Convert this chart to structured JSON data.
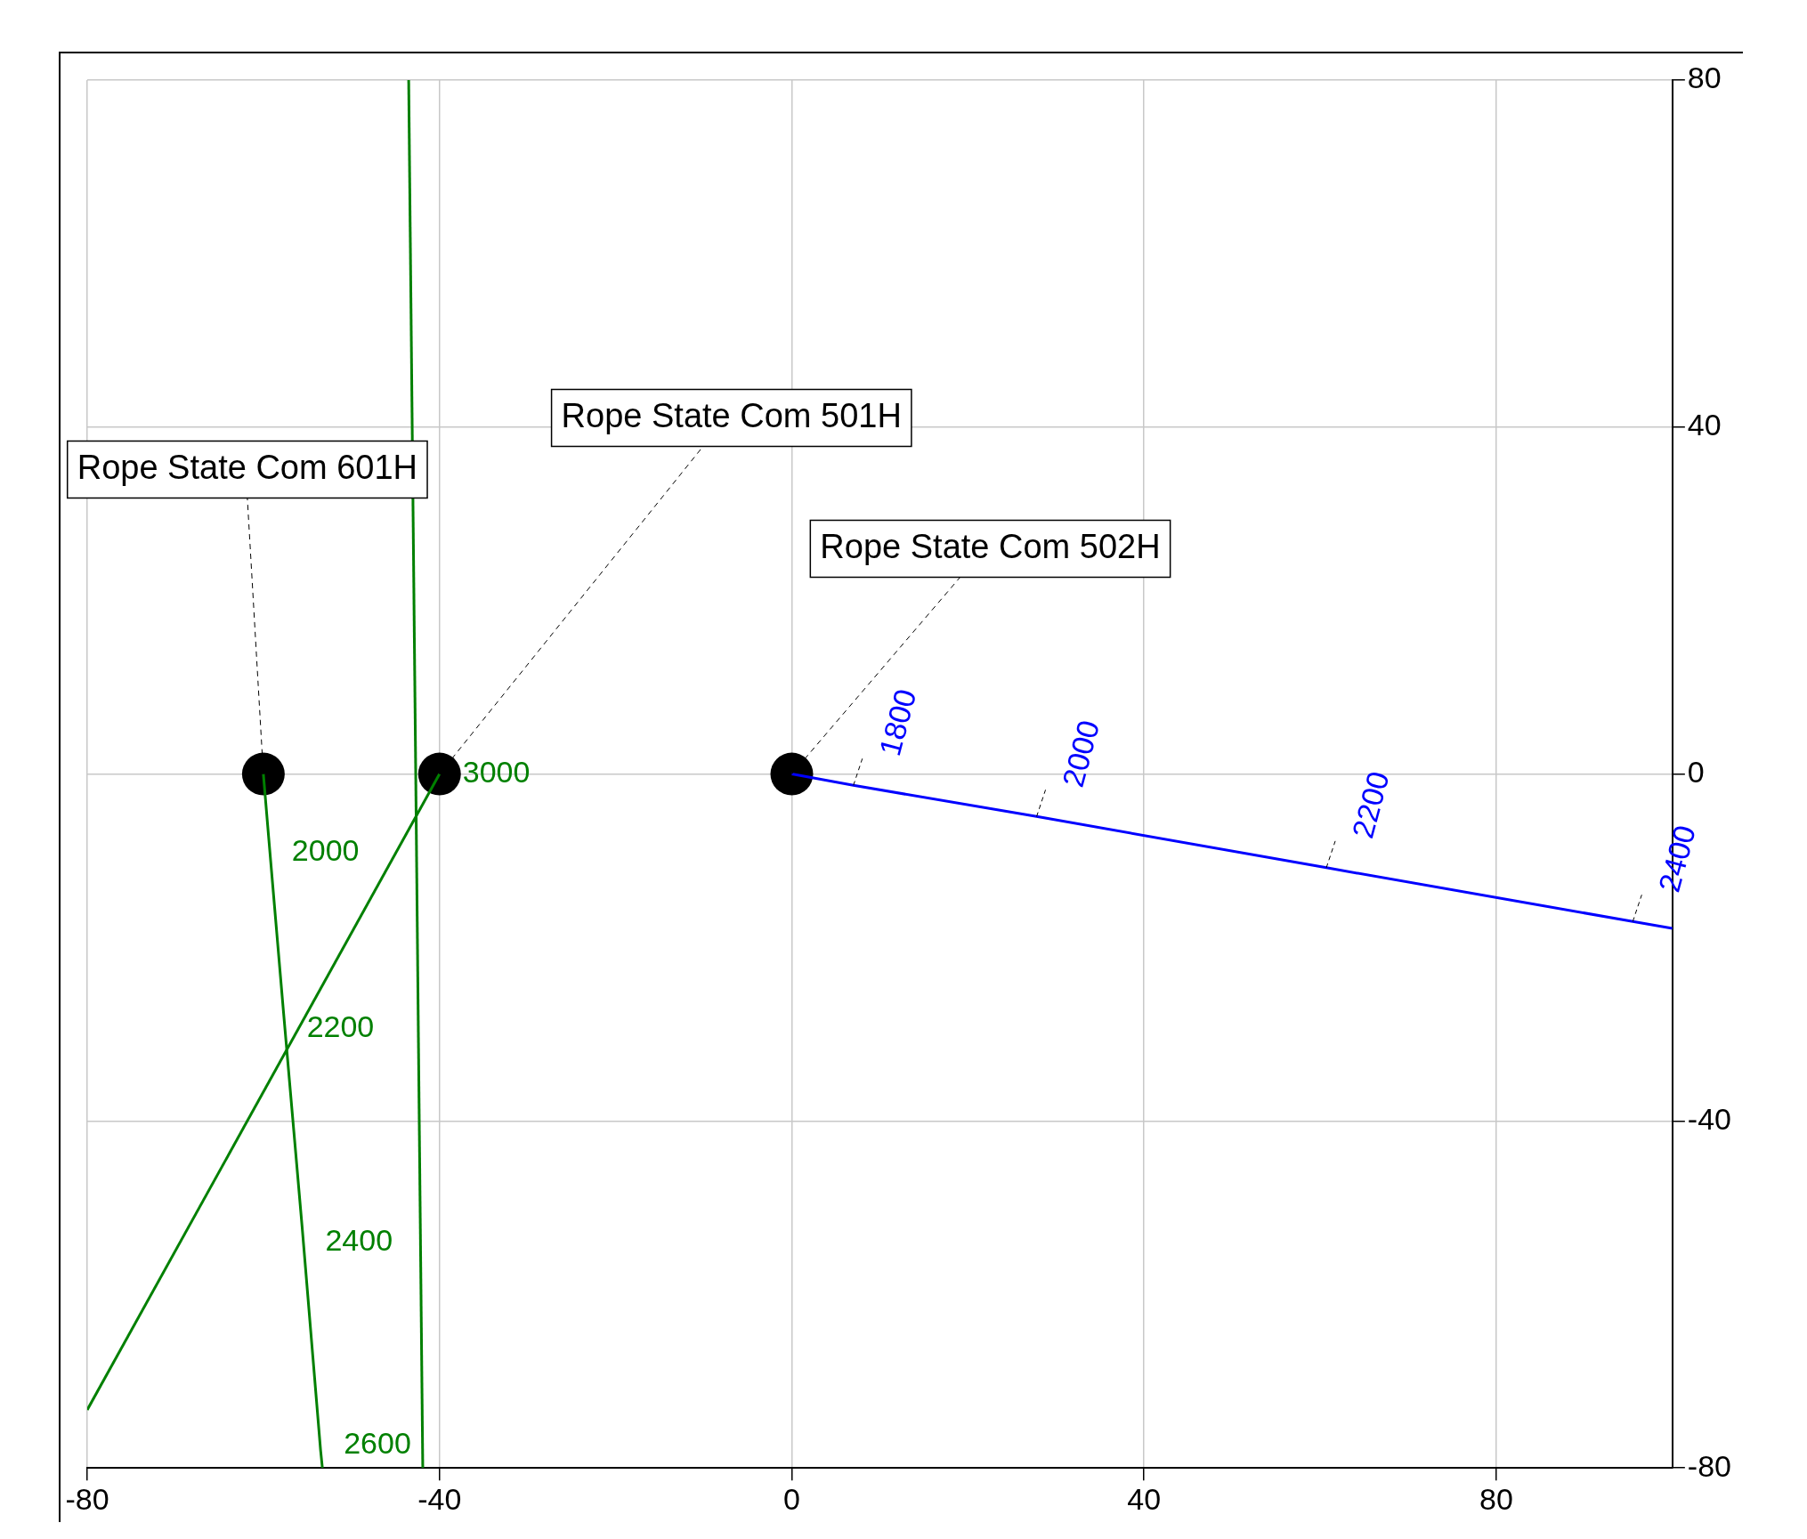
{
  "chart_data": {
    "type": "line",
    "xlim": [
      -80,
      100
    ],
    "ylim": [
      -80,
      80
    ],
    "xticks": [
      -80,
      -40,
      0,
      40,
      80
    ],
    "yticks": [
      -80,
      -40,
      0,
      40,
      80
    ],
    "grid": true,
    "series": [
      {
        "color": "#008000",
        "marker": "none",
        "x": [
          -60,
          -59.4,
          -57.7,
          -55.6,
          -53.5,
          -53.3
        ],
        "values": [
          0,
          -7.3,
          -27.6,
          -52.2,
          -78,
          -80
        ]
      },
      {
        "color": "#008000",
        "marker": "none",
        "x": [
          -40,
          -80
        ],
        "values": [
          0,
          -73.3
        ]
      },
      {
        "color": "#008000",
        "marker": "none",
        "x": [
          -43.5,
          -41.9
        ],
        "values": [
          80,
          -80
        ]
      },
      {
        "color": "#0000ff",
        "marker": "none",
        "x": [
          0,
          7,
          27.8,
          60.7,
          95.5,
          100
        ],
        "values": [
          0,
          -1.3,
          -4.9,
          -10.8,
          -17,
          -17.8
        ]
      },
      {
        "type": "scatter",
        "marker": "circle",
        "color": "#000000",
        "x": [
          -60,
          -40,
          0
        ],
        "values": [
          0,
          0,
          0
        ]
      }
    ],
    "annotations": [
      {
        "text": "Rope State Com 601H",
        "x": -60,
        "y": 0
      },
      {
        "text": "Rope State Com 501H",
        "x": -40,
        "y": 0
      },
      {
        "text": "Rope State Com 502H",
        "x": 0,
        "y": 0
      },
      {
        "text": "2000",
        "x": -59.4,
        "y": -7.3
      },
      {
        "text": "2200",
        "x": -57.7,
        "y": -27.6
      },
      {
        "text": "2400",
        "x": -55.6,
        "y": -52.2
      },
      {
        "text": "2600",
        "x": -53.5,
        "y": -78
      },
      {
        "text": "3000",
        "x": -40,
        "y": 0
      },
      {
        "text": "1800",
        "x": 7,
        "y": -1.3
      },
      {
        "text": "2000",
        "x": 27.8,
        "y": -4.9
      },
      {
        "text": "2200",
        "x": 60.7,
        "y": -10.8
      },
      {
        "text": "2400",
        "x": 95.5,
        "y": -17
      }
    ]
  }
}
